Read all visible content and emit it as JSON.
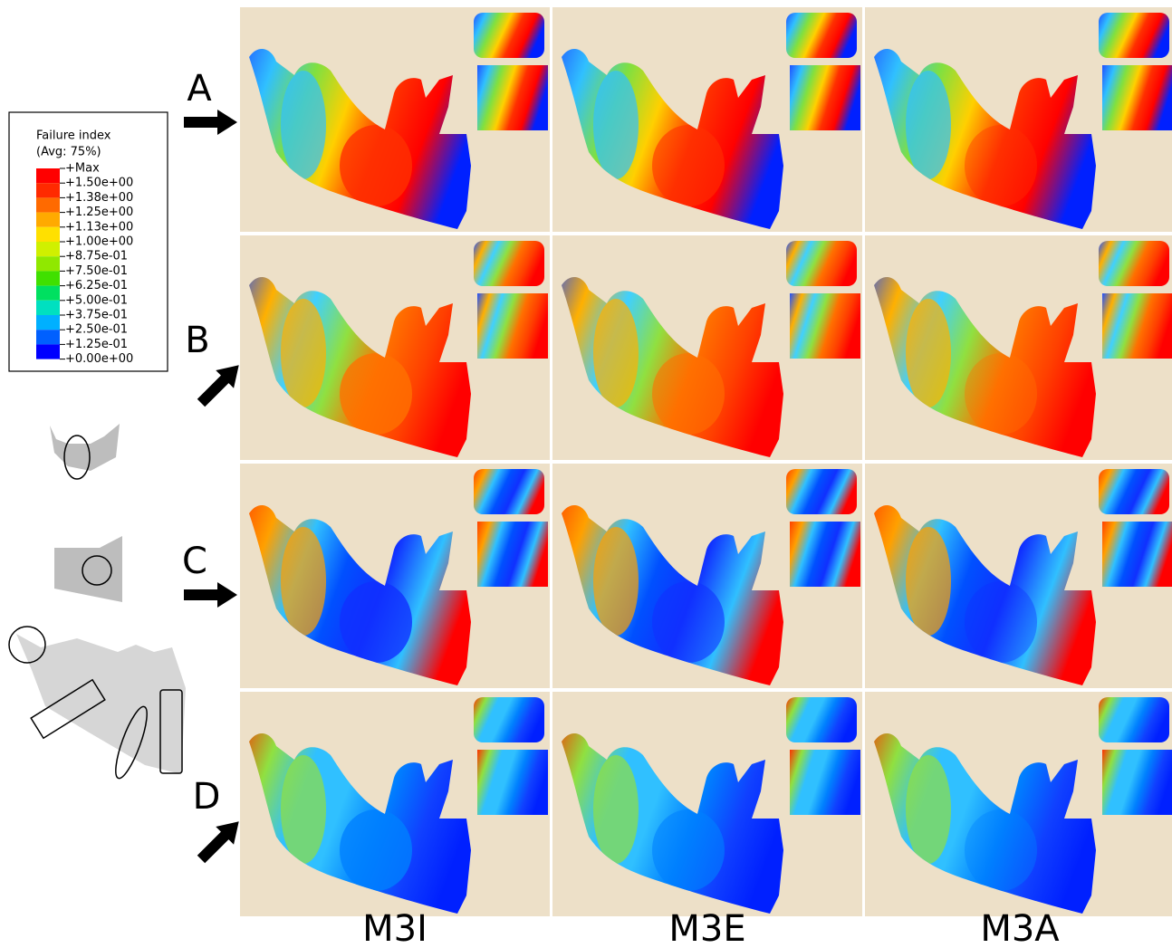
{
  "legend": {
    "title": "Failure index",
    "subtitle": "(Avg: 75%)",
    "labels": [
      "+Max",
      "+1.50e+00",
      "+1.38e+00",
      "+1.25e+00",
      "+1.13e+00",
      "+1.00e+00",
      "+8.75e-01",
      "+7.50e-01",
      "+6.25e-01",
      "+5.00e-01",
      "+3.75e-01",
      "+2.50e-01",
      "+1.25e-01",
      "+0.00e+00"
    ]
  },
  "rows": [
    "A",
    "B",
    "C",
    "D"
  ],
  "columns": [
    "M3I",
    "M3E",
    "M3A"
  ]
}
